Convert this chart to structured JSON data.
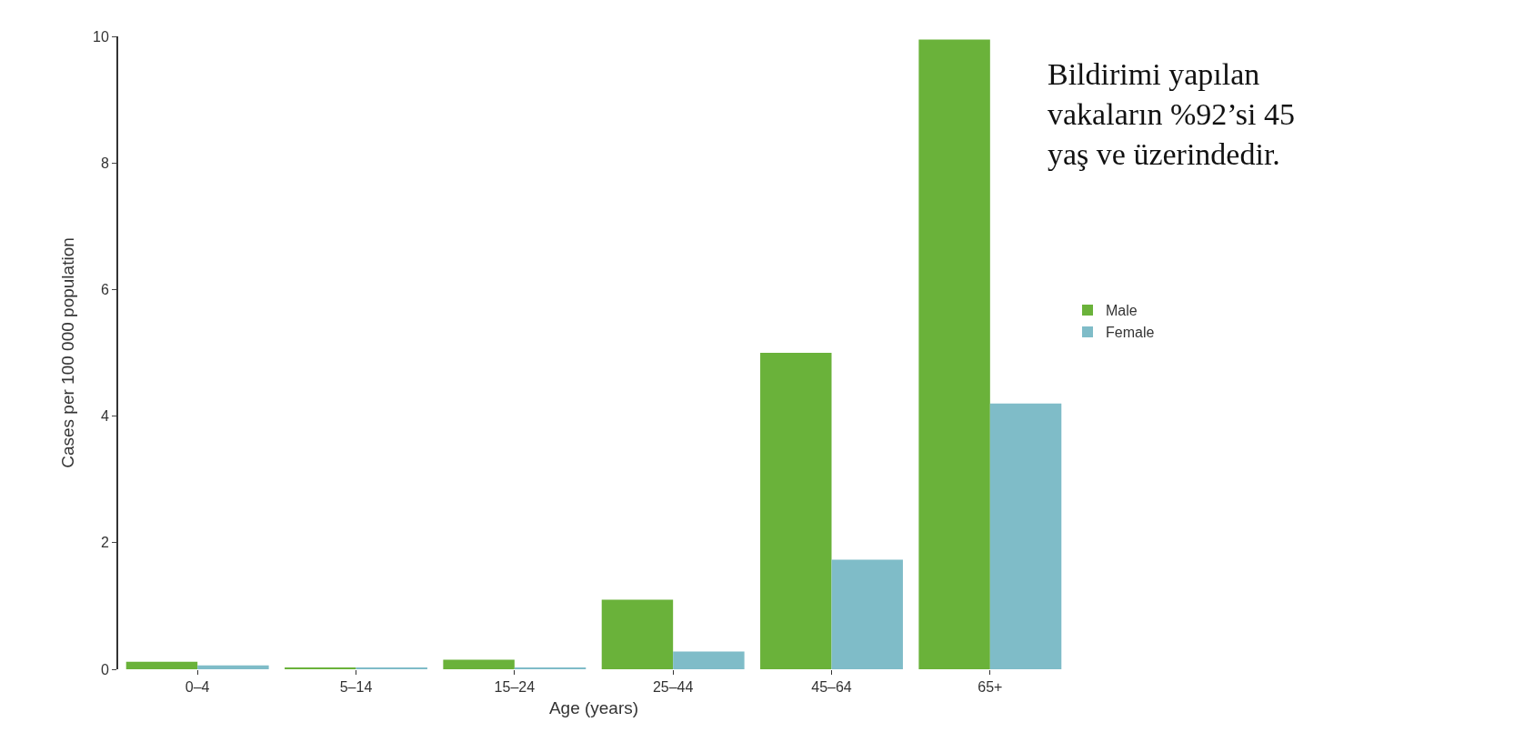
{
  "chart_data": {
    "type": "bar",
    "xlabel": "Age (years)",
    "ylabel": "Cases per 100 000 population",
    "categories": [
      "0–4",
      "5–14",
      "15–24",
      "25–44",
      "45–64",
      "65+"
    ],
    "series": [
      {
        "name": "Male",
        "color": "#6ab23a",
        "values": [
          0.12,
          0.03,
          0.15,
          1.1,
          5.0,
          9.95
        ]
      },
      {
        "name": "Female",
        "color": "#7fbcc8",
        "values": [
          0.06,
          0.03,
          0.03,
          0.28,
          1.73,
          4.2
        ]
      }
    ],
    "ylim": [
      0,
      10
    ],
    "yticks": [
      0,
      2,
      4,
      6,
      8,
      10
    ],
    "legend": "right",
    "annotations": [
      "Bildirimi yapılan vakaların %92’si 45 yaş ve üzerindedir."
    ]
  }
}
